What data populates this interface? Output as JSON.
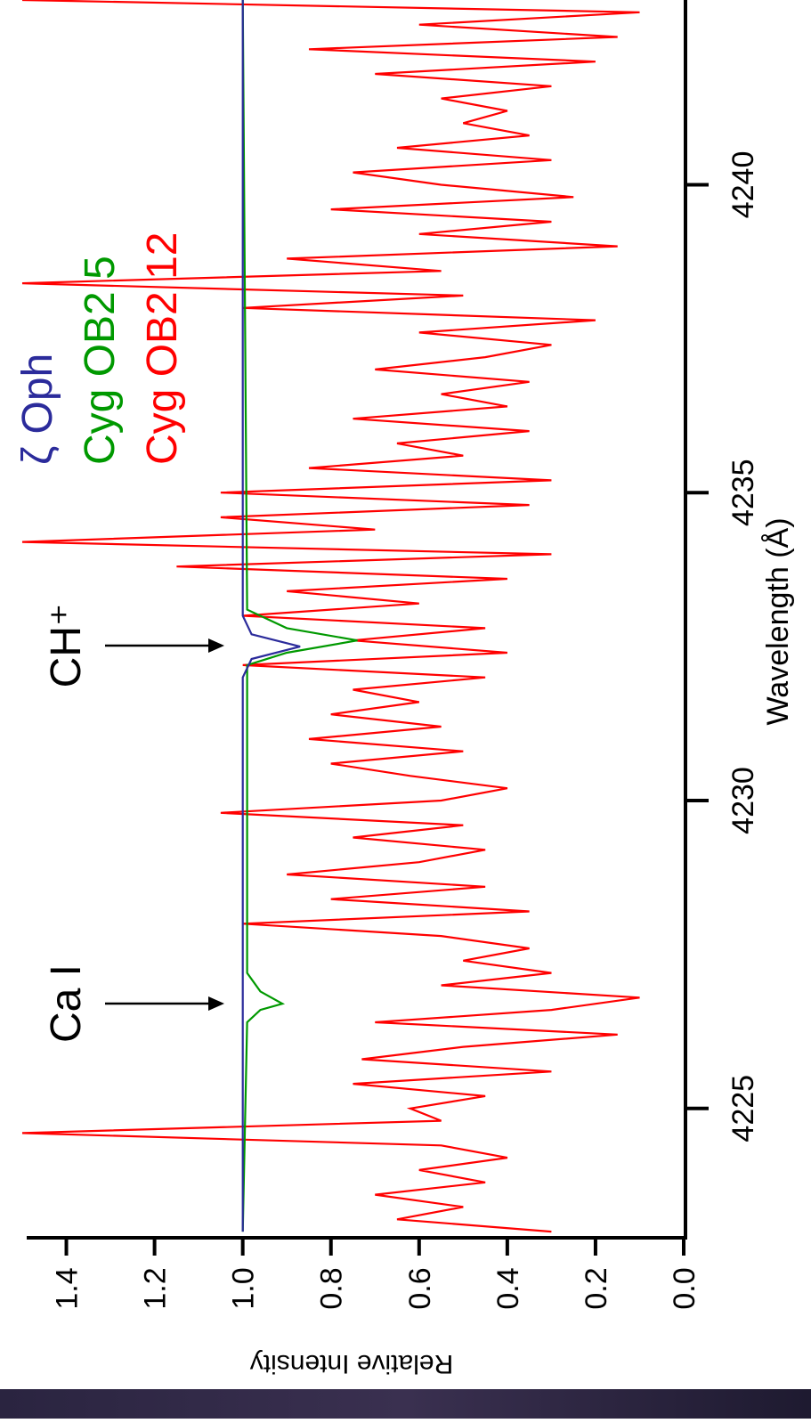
{
  "chart_data": {
    "type": "line",
    "x_label": "Wavelength (Å)",
    "y_label": "Relative Intensity",
    "annotations": [
      "Ca I",
      "CH⁺"
    ],
    "xlim": [
      4222.9,
      4243
    ],
    "xticks": [
      4225,
      4230,
      4235,
      4240
    ],
    "ylim": [
      0,
      1.5
    ],
    "yticks": [
      {
        "value": 0,
        "label": "0.0"
      },
      0.2,
      0.4,
      0.6,
      0.8,
      {
        "value": 1,
        "label": "1.0"
      },
      1.2,
      1.4
    ],
    "series": [
      {
        "name": "ζ Oph",
        "color": "#2b2b9b",
        "x": [
          4223,
          4232,
          4232.3,
          4232.5,
          4232.7,
          4233,
          4243
        ],
        "values": [
          1.0,
          1.0,
          0.98,
          0.87,
          0.98,
          1.0,
          1.0
        ]
      },
      {
        "name": "Cyg OB2 5",
        "color": "#009900",
        "x": [
          4223,
          4226.4,
          4226.6,
          4226.7,
          4226.9,
          4227.2,
          4232.2,
          4232.4,
          4232.6,
          4232.8,
          4233.1,
          4243
        ],
        "values": [
          1.0,
          0.99,
          0.96,
          0.91,
          0.96,
          0.99,
          0.99,
          0.9,
          0.74,
          0.9,
          0.99,
          1.0
        ]
      },
      {
        "name": "Cyg OB2 12",
        "color": "#ff0000",
        "x": [
          4223.0,
          4223.2,
          4223.4,
          4223.6,
          4223.8,
          4224.0,
          4224.2,
          4224.4,
          4224.6,
          4224.8,
          4225.0,
          4225.2,
          4225.4,
          4225.6,
          4225.8,
          4226.0,
          4226.2,
          4226.4,
          4226.6,
          4226.8,
          4227.0,
          4227.2,
          4227.4,
          4227.6,
          4227.8,
          4228.0,
          4228.2,
          4228.4,
          4228.6,
          4228.8,
          4229.0,
          4229.2,
          4229.4,
          4229.6,
          4229.8,
          4230.0,
          4230.2,
          4230.4,
          4230.6,
          4230.8,
          4231.0,
          4231.2,
          4231.4,
          4231.6,
          4231.8,
          4232.0,
          4232.2,
          4232.4,
          4232.6,
          4232.8,
          4233.0,
          4233.2,
          4233.4,
          4233.6,
          4233.8,
          4234.0,
          4234.2,
          4234.4,
          4234.6,
          4234.8,
          4235.0,
          4235.2,
          4235.4,
          4235.6,
          4235.8,
          4236.0,
          4236.2,
          4236.4,
          4236.6,
          4236.8,
          4237.0,
          4237.2,
          4237.4,
          4237.6,
          4237.8,
          4238.0,
          4238.2,
          4238.4,
          4238.6,
          4238.8,
          4239.0,
          4239.2,
          4239.4,
          4239.6,
          4239.8,
          4240.0,
          4240.2,
          4240.4,
          4240.6,
          4240.8,
          4241.0,
          4241.2,
          4241.4,
          4241.6,
          4241.8,
          4242.0,
          4242.2,
          4242.4,
          4242.6,
          4242.8,
          4243.0
        ],
        "values": [
          0.3,
          0.65,
          0.5,
          0.7,
          0.45,
          0.6,
          0.4,
          0.55,
          1.5,
          0.55,
          0.62,
          0.45,
          0.75,
          0.3,
          0.73,
          0.5,
          0.15,
          0.7,
          0.3,
          0.1,
          0.55,
          0.3,
          0.5,
          0.35,
          0.55,
          1.0,
          0.35,
          0.8,
          0.45,
          0.9,
          0.6,
          0.45,
          0.75,
          0.5,
          1.05,
          0.55,
          0.4,
          0.62,
          0.8,
          0.5,
          0.85,
          0.55,
          0.8,
          0.6,
          0.75,
          0.45,
          1.0,
          0.4,
          0.75,
          0.45,
          1.0,
          0.6,
          0.9,
          0.4,
          1.15,
          0.3,
          1.5,
          0.7,
          1.05,
          0.35,
          1.05,
          0.3,
          0.85,
          0.5,
          0.65,
          0.35,
          0.75,
          0.4,
          0.55,
          0.35,
          0.7,
          0.45,
          0.3,
          0.6,
          0.2,
          1.0,
          0.5,
          1.5,
          0.55,
          0.9,
          0.15,
          0.6,
          0.3,
          0.8,
          0.25,
          0.55,
          0.75,
          0.3,
          0.65,
          0.35,
          0.5,
          0.4,
          0.55,
          0.3,
          0.7,
          0.2,
          0.85,
          0.15,
          0.6,
          0.1,
          1.5
        ]
      }
    ]
  }
}
